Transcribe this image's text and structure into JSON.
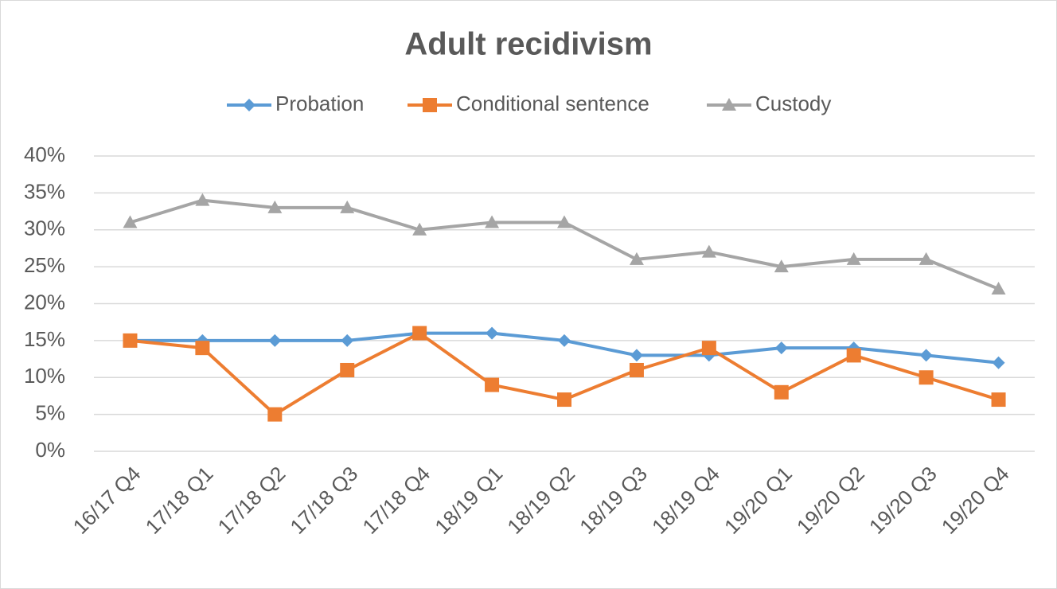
{
  "chart_data": {
    "type": "line",
    "title": "Adult recidivism",
    "categories": [
      "16/17 Q4",
      "17/18 Q1",
      "17/18 Q2",
      "17/18 Q3",
      "17/18 Q4",
      "18/19 Q1",
      "18/19 Q2",
      "18/19 Q3",
      "18/19 Q4",
      "19/20 Q1",
      "19/20 Q2",
      "19/20 Q3",
      "19/20 Q4"
    ],
    "series": [
      {
        "name": "Probation",
        "color": "#5b9bd5",
        "marker": "diamond",
        "values": [
          15,
          15,
          15,
          15,
          16,
          16,
          15,
          13,
          13,
          14,
          14,
          13,
          12
        ]
      },
      {
        "name": "Conditional sentence",
        "color": "#ed7d31",
        "marker": "square",
        "values": [
          15,
          14,
          5,
          11,
          16,
          9,
          7,
          11,
          14,
          8,
          13,
          10,
          7
        ]
      },
      {
        "name": "Custody",
        "color": "#a5a5a5",
        "marker": "triangle",
        "values": [
          31,
          34,
          33,
          33,
          30,
          31,
          31,
          26,
          27,
          25,
          26,
          26,
          22
        ]
      }
    ],
    "ylim": [
      0,
      40
    ],
    "yticks": [
      {
        "value": 0,
        "label": "0%"
      },
      {
        "value": 5,
        "label": "5%"
      },
      {
        "value": 10,
        "label": "10%"
      },
      {
        "value": 15,
        "label": "15%"
      },
      {
        "value": 20,
        "label": "20%"
      },
      {
        "value": 25,
        "label": "25%"
      },
      {
        "value": 30,
        "label": "30%"
      },
      {
        "value": 35,
        "label": "35%"
      },
      {
        "value": 40,
        "label": "40%"
      }
    ],
    "grid": true,
    "legend": "top"
  }
}
